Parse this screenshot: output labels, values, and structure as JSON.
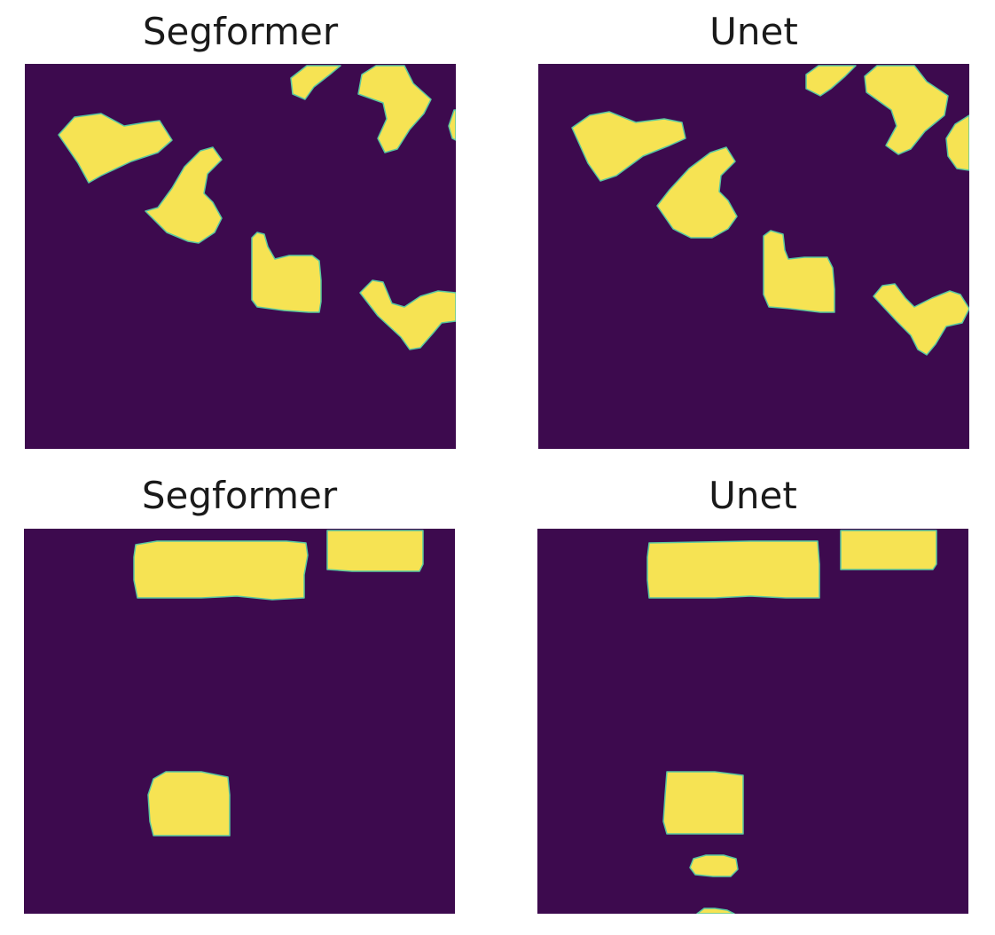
{
  "panels": [
    {
      "title": "Segformer"
    },
    {
      "title": "Unet"
    },
    {
      "title": "Segformer"
    },
    {
      "title": "Unet"
    }
  ],
  "colors": {
    "background_class": "#3d0a4e",
    "foreground_class": "#f6e353",
    "edge": "#58c7a0"
  }
}
